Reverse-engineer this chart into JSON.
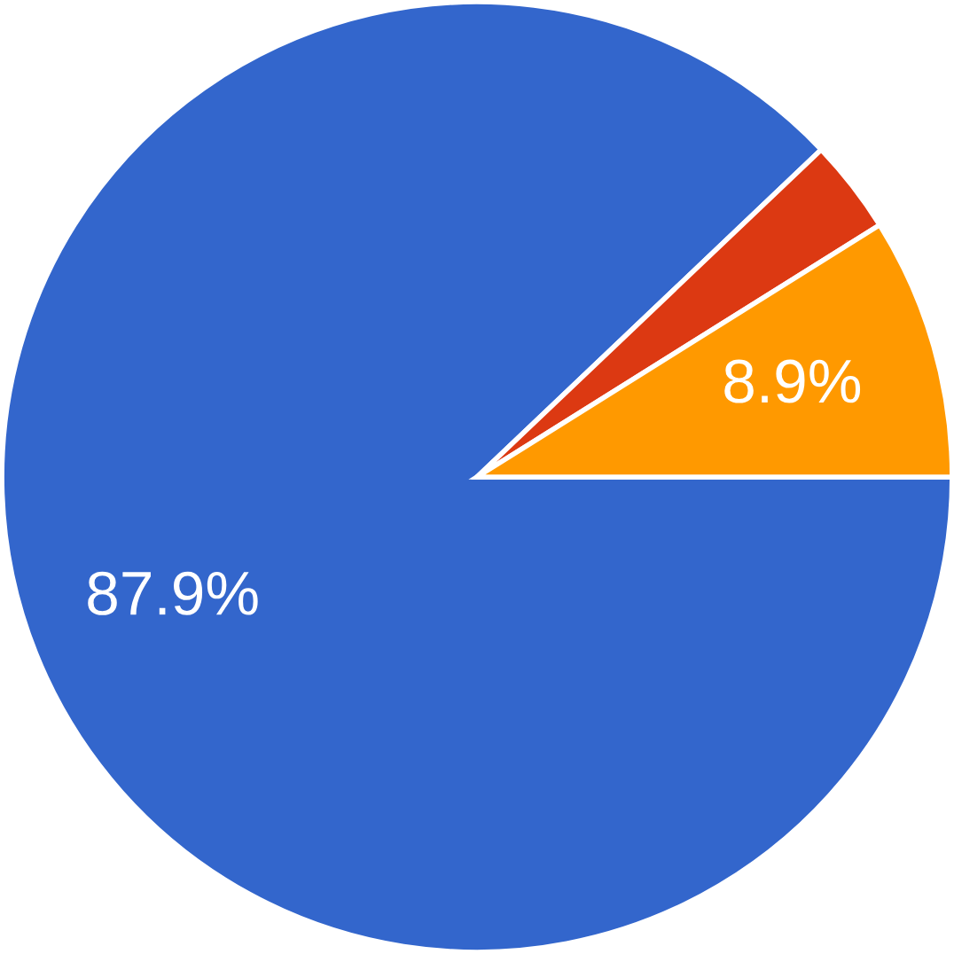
{
  "chart_data": {
    "type": "pie",
    "categories": [
      null,
      null,
      null
    ],
    "values": [
      87.9,
      3.2,
      8.9
    ],
    "colors": [
      "#3366cc",
      "#dc3912",
      "#ff9900"
    ],
    "value_labels": [
      "87.9%",
      null,
      "8.9%"
    ]
  }
}
